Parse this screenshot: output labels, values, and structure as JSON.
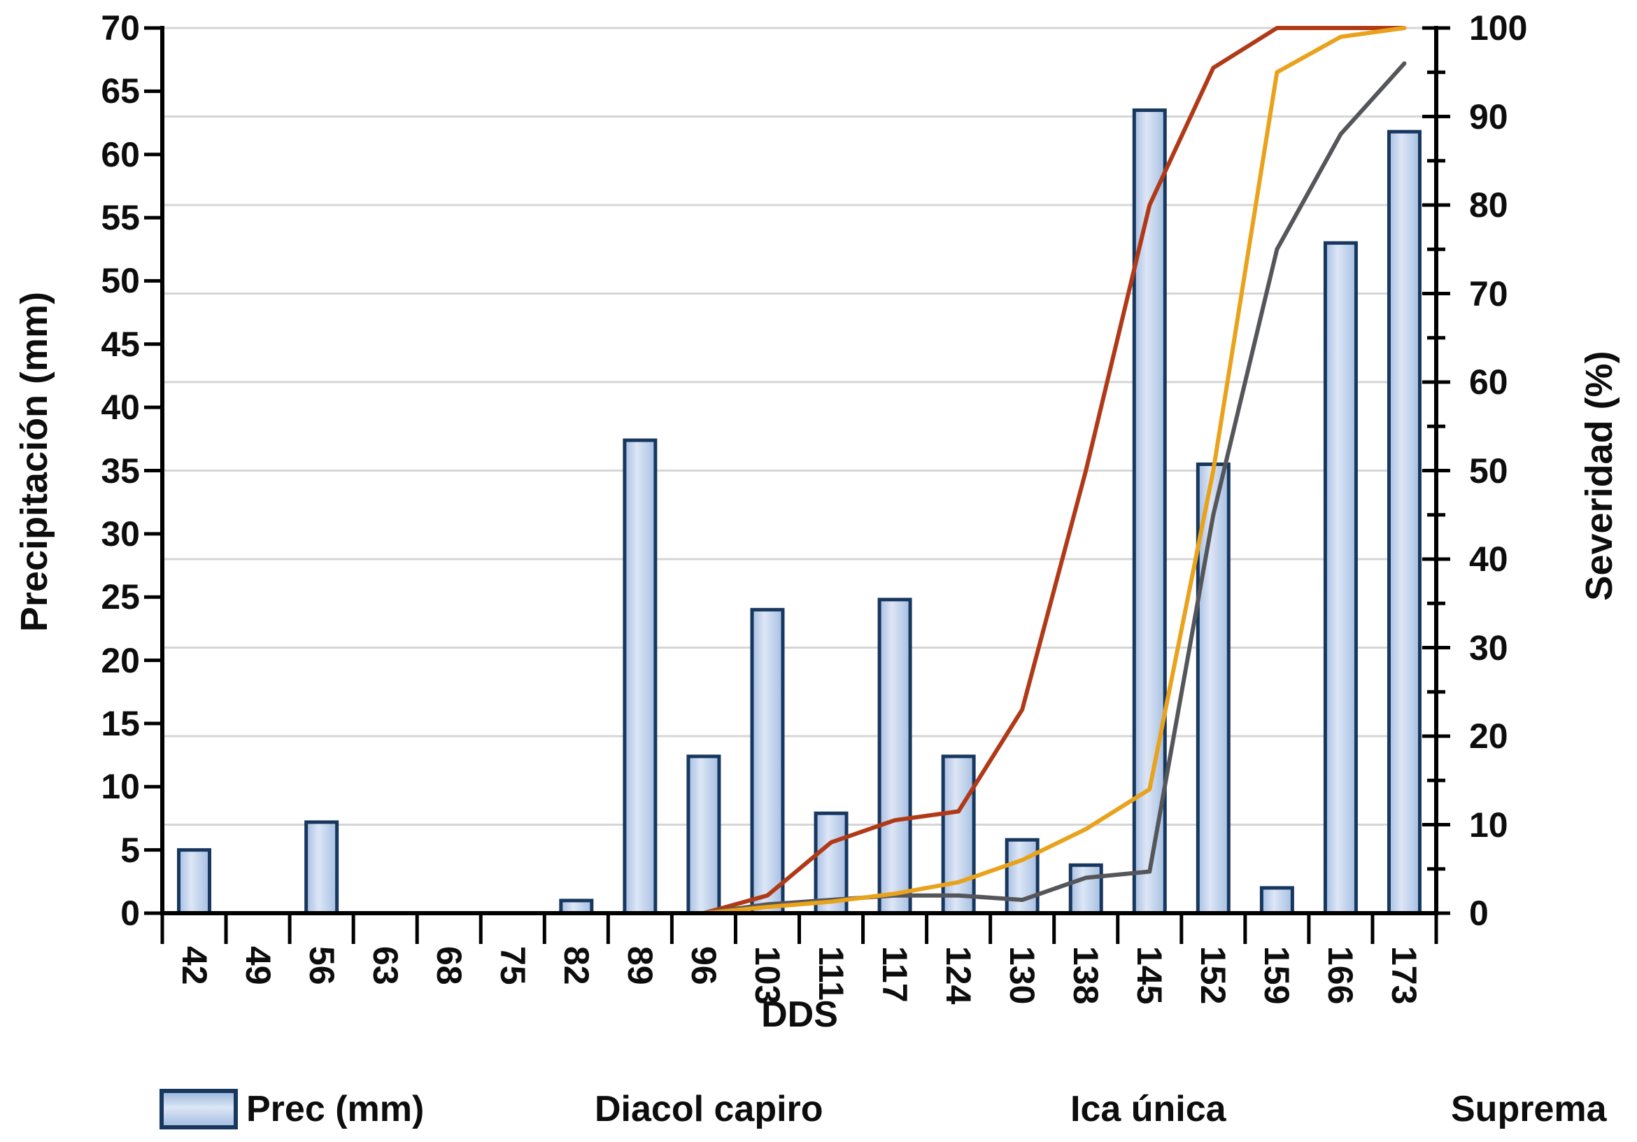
{
  "chart_data": {
    "type": "combo-bar-line",
    "x_title": "DDS",
    "categories": [
      42,
      49,
      56,
      63,
      68,
      75,
      82,
      89,
      96,
      103,
      111,
      117,
      124,
      130,
      138,
      145,
      152,
      159,
      166,
      173
    ],
    "left_axis": {
      "title": "Precipitación (mm)",
      "min": 0,
      "max": 70,
      "step": 5
    },
    "right_axis": {
      "title": "Severidad (%)",
      "min": 0,
      "max": 100,
      "step": 10,
      "minor_step": 5
    },
    "grid": {
      "on": true,
      "interval_pct": 10,
      "color": "#D6D6D6"
    },
    "bar_series": {
      "name": "Prec (mm)",
      "axis": "left",
      "values": [
        5,
        0,
        7.2,
        0,
        0,
        0,
        1,
        37.4,
        12.4,
        24,
        7.9,
        24.8,
        12.4,
        5.8,
        3.8,
        63.5,
        35.5,
        2,
        53,
        61.8
      ],
      "fill_light": "#DDE6F6",
      "fill_dark": "#A6BFE2",
      "border_color": "#17375E"
    },
    "line_series": [
      {
        "name": "Diacol capiro",
        "axis": "right",
        "color": "#B03A18",
        "values": [
          null,
          null,
          null,
          null,
          null,
          null,
          null,
          null,
          0,
          2,
          8,
          10.5,
          11.5,
          23,
          50,
          80,
          95.5,
          100,
          100,
          100
        ]
      },
      {
        "name": "Ica única",
        "axis": "right",
        "color": "#55565A",
        "values": [
          null,
          null,
          null,
          null,
          null,
          null,
          null,
          null,
          0,
          1,
          1.5,
          2,
          2,
          1.5,
          4,
          4.7,
          45,
          75,
          88,
          96
        ]
      },
      {
        "name": "Suprema",
        "axis": "right",
        "color": "#E9A21B",
        "values": [
          null,
          null,
          null,
          null,
          null,
          null,
          null,
          null,
          0,
          0.7,
          1.3,
          2.2,
          3.5,
          6,
          9.5,
          14,
          50,
          95,
          99,
          100
        ]
      }
    ],
    "legend_position": "bottom",
    "axis_color": "#000000"
  }
}
